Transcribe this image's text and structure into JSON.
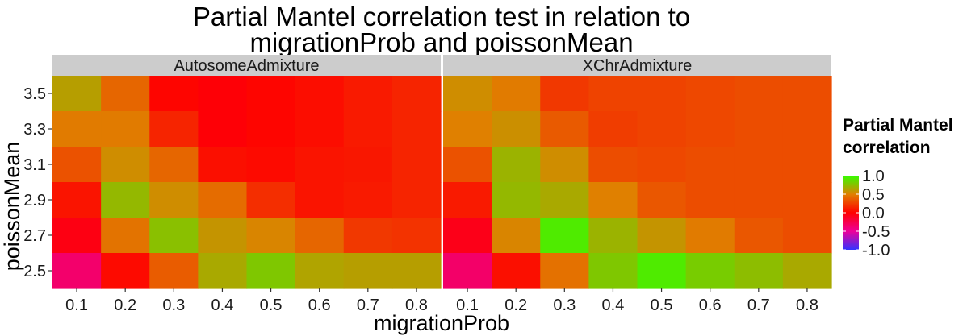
{
  "chart_data": {
    "type": "heatmap",
    "title_lines": [
      "Partial Mantel correlation test in relation to",
      "migrationProb and poissonMean"
    ],
    "xlabel": "migrationProb",
    "ylabel": "poissonMean",
    "x_ticks": [
      "0.1",
      "0.2",
      "0.3",
      "0.4",
      "0.5",
      "0.6",
      "0.7",
      "0.8"
    ],
    "y_ticks": [
      "3.5",
      "3.3",
      "3.1",
      "2.9",
      "2.7",
      "2.5"
    ],
    "legend": {
      "title_lines": [
        "Partial Mantel",
        "correlation"
      ],
      "range": [
        -1.0,
        1.0
      ],
      "ticks": [
        "1.0",
        "0.5",
        "0.0",
        "-0.5",
        "-1.0"
      ],
      "placement": "right"
    },
    "colors": {
      "low": "#3333ff",
      "mid_low": "#ee0099",
      "mid": "#ff0000",
      "mid_high": "#e08000",
      "high": "#33ff00",
      "strip_bg": "#cccccc",
      "panel_bg": "#ebebeb"
    },
    "panels": [
      {
        "strip": "AutosomeAdmixture",
        "rows": [
          [
            0.62,
            0.4,
            0.02,
            -0.02,
            0.02,
            0.05,
            0.1,
            0.14
          ],
          [
            0.48,
            0.48,
            0.14,
            -0.02,
            0.02,
            0.05,
            0.1,
            0.14
          ],
          [
            0.32,
            0.55,
            0.4,
            0.06,
            0.04,
            0.08,
            0.09,
            0.14
          ],
          [
            0.08,
            0.72,
            0.55,
            0.42,
            0.18,
            0.08,
            0.1,
            0.14
          ],
          [
            -0.06,
            0.45,
            0.75,
            0.58,
            0.52,
            0.4,
            0.22,
            0.2
          ],
          [
            -0.35,
            0.04,
            0.36,
            0.66,
            0.78,
            0.64,
            0.62,
            0.62
          ]
        ]
      },
      {
        "strip": "XChrAdmixture",
        "rows": [
          [
            0.55,
            0.48,
            0.22,
            0.26,
            0.26,
            0.28,
            0.3,
            0.3
          ],
          [
            0.5,
            0.56,
            0.35,
            0.24,
            0.26,
            0.28,
            0.3,
            0.3
          ],
          [
            0.32,
            0.7,
            0.55,
            0.3,
            0.28,
            0.3,
            0.3,
            0.3
          ],
          [
            0.1,
            0.72,
            0.66,
            0.5,
            0.34,
            0.3,
            0.3,
            0.3
          ],
          [
            -0.08,
            0.52,
            0.92,
            0.7,
            0.58,
            0.48,
            0.34,
            0.3
          ],
          [
            -0.34,
            0.06,
            0.44,
            0.78,
            0.92,
            0.8,
            0.74,
            0.66
          ]
        ]
      }
    ]
  }
}
